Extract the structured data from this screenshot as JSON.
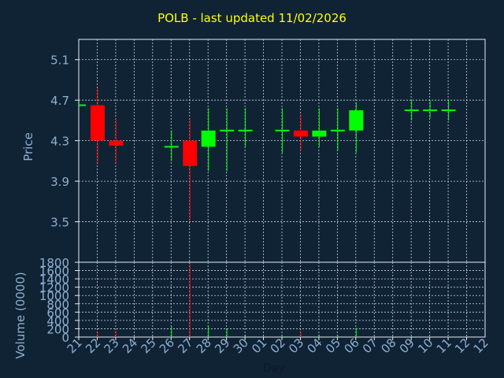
{
  "chart_data": [
    {
      "type": "candlestick",
      "title": "POLB - last updated 11/02/2026",
      "ylabel": "Price",
      "ylim": [
        3.1,
        5.3
      ],
      "yticks": [
        "3.5",
        "3.9",
        "4.3",
        "4.7",
        "5.1"
      ],
      "grid": true,
      "colors": {
        "up": "#00ff00",
        "down": "#ff0000",
        "title": "#ffff00",
        "text": "#8fb0d0"
      },
      "candles": [
        {
          "day": "21",
          "open": 4.65,
          "high": 4.65,
          "low": 4.65,
          "close": 4.65
        },
        {
          "day": "22",
          "open": 4.65,
          "high": 4.82,
          "low": 4.08,
          "close": 4.3
        },
        {
          "day": "23",
          "open": 4.3,
          "high": 4.52,
          "low": 4.08,
          "close": 4.25
        },
        {
          "day": "26",
          "open": 4.24,
          "high": 4.4,
          "low": 4.1,
          "close": 4.24
        },
        {
          "day": "27",
          "open": 4.3,
          "high": 4.52,
          "low": 3.5,
          "close": 4.05
        },
        {
          "day": "28",
          "open": 4.24,
          "high": 4.62,
          "low": 4.0,
          "close": 4.4
        },
        {
          "day": "29",
          "open": 4.4,
          "high": 4.62,
          "low": 4.0,
          "close": 4.4
        },
        {
          "day": "30",
          "open": 4.4,
          "high": 4.62,
          "low": 4.24,
          "close": 4.4
        },
        {
          "day": "02",
          "open": 4.4,
          "high": 4.62,
          "low": 4.18,
          "close": 4.4
        },
        {
          "day": "03",
          "open": 4.4,
          "high": 4.56,
          "low": 4.2,
          "close": 4.34
        },
        {
          "day": "04",
          "open": 4.34,
          "high": 4.62,
          "low": 4.24,
          "close": 4.4
        },
        {
          "day": "05",
          "open": 4.4,
          "high": 4.62,
          "low": 4.2,
          "close": 4.4
        },
        {
          "day": "06",
          "open": 4.4,
          "high": 4.68,
          "low": 4.18,
          "close": 4.6
        },
        {
          "day": "09",
          "open": 4.6,
          "high": 4.7,
          "low": 4.5,
          "close": 4.6
        },
        {
          "day": "10",
          "open": 4.6,
          "high": 4.7,
          "low": 4.52,
          "close": 4.6
        },
        {
          "day": "11",
          "open": 4.6,
          "high": 4.7,
          "low": 4.5,
          "close": 4.6
        }
      ]
    },
    {
      "type": "bar",
      "ylabel": "Volume (0000)",
      "xlabel": "Day",
      "ylim": [
        0,
        1800
      ],
      "yticks": [
        "0",
        "200",
        "400",
        "600",
        "800",
        "1000",
        "1200",
        "1400",
        "1600",
        "1800"
      ],
      "categories": [
        "21",
        "22",
        "23",
        "24",
        "25",
        "26",
        "27",
        "28",
        "29",
        "30",
        "01",
        "02",
        "03",
        "04",
        "05",
        "06",
        "07",
        "08",
        "09",
        "10",
        "11",
        "12"
      ],
      "values": [
        0,
        120,
        150,
        0,
        0,
        260,
        1750,
        260,
        200,
        50,
        0,
        30,
        150,
        50,
        40,
        220,
        0,
        0,
        20,
        10,
        10,
        0
      ],
      "bar_colors": [
        "up",
        "down",
        "down",
        "up",
        "up",
        "up",
        "down",
        "up",
        "up",
        "up",
        "up",
        "up",
        "down",
        "up",
        "up",
        "up",
        "up",
        "up",
        "up",
        "up",
        "up",
        "up"
      ]
    }
  ]
}
